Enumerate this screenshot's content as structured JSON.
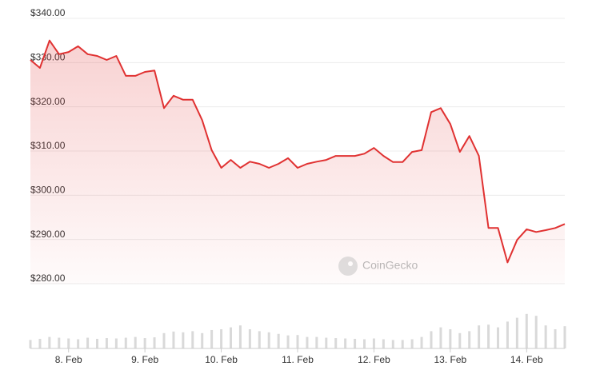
{
  "chart_data": {
    "type": "line",
    "categories": [
      null,
      null,
      null,
      null,
      "8. Feb",
      null,
      null,
      null,
      null,
      null,
      null,
      null,
      "9. Feb",
      null,
      null,
      null,
      null,
      null,
      null,
      null,
      "10. Feb",
      null,
      null,
      null,
      null,
      null,
      null,
      null,
      "11. Feb",
      null,
      null,
      null,
      null,
      null,
      null,
      null,
      "12. Feb",
      null,
      null,
      null,
      null,
      null,
      null,
      null,
      "13. Feb",
      null,
      null,
      null,
      null,
      null,
      null,
      null,
      "14. Feb",
      null,
      null,
      null,
      null
    ],
    "series": [
      {
        "color": "#e03131",
        "values": [
          330.6,
          328.8,
          335,
          331.9,
          332.4,
          333.7,
          331.9,
          331.5,
          330.6,
          331.5,
          327,
          327,
          327.9,
          328.2,
          319.7,
          322.5,
          321.6,
          321.6,
          317,
          310.2,
          306.2,
          308,
          306.2,
          307.6,
          307.1,
          306.2,
          307.1,
          308.4,
          306.2,
          307.1,
          307.6,
          308,
          308.9,
          308.9,
          308.9,
          309.4,
          310.7,
          308.9,
          307.5,
          307.5,
          309.8,
          310.2,
          318.8,
          319.7,
          316.1,
          309.8,
          313.4,
          308.9,
          292.6,
          292.6,
          284.8,
          289.9,
          292.3,
          291.7,
          292.1,
          292.6,
          293.5
        ]
      }
    ],
    "volumes": {
      "color": "#d9d9d9",
      "values": [
        22,
        25,
        30,
        28,
        26,
        24,
        28,
        25,
        27,
        26,
        28,
        30,
        27,
        29,
        40,
        44,
        42,
        45,
        40,
        48,
        50,
        55,
        60,
        50,
        45,
        42,
        38,
        34,
        35,
        30,
        30,
        28,
        27,
        26,
        25,
        24,
        26,
        24,
        22,
        22,
        24,
        30,
        45,
        55,
        50,
        40,
        45,
        60,
        62,
        55,
        70,
        80,
        90,
        85,
        60,
        50,
        58
      ],
      "lim": [
        0,
        100
      ]
    },
    "ylim": [
      280,
      340
    ],
    "yticks": [
      {
        "value": 280,
        "label": "$280.00"
      },
      {
        "value": 290,
        "label": "$290.00"
      },
      {
        "value": 300,
        "label": "$300.00"
      },
      {
        "value": 310,
        "label": "$310.00"
      },
      {
        "value": 320,
        "label": "$320.00"
      },
      {
        "value": 330,
        "label": "$330.00"
      },
      {
        "value": 340,
        "label": "$340.00"
      }
    ],
    "grid": true,
    "watermark": "CoinGecko"
  }
}
